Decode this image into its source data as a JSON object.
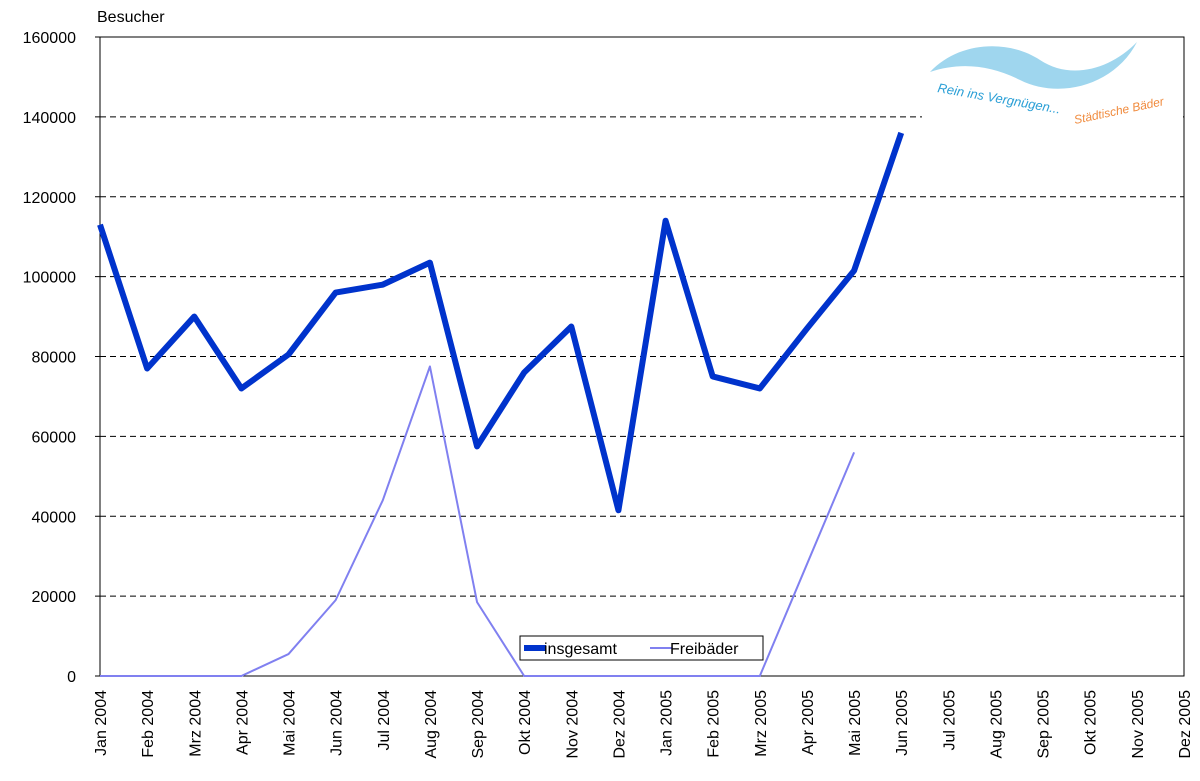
{
  "chart_data": {
    "type": "line",
    "y_axis_label": "Besucher",
    "annotations": [
      "Rein ins Vergnügen...",
      "Städtische Bäder"
    ],
    "categories": [
      "Jan 2004",
      "Feb 2004",
      "Mrz 2004",
      "Apr 2004",
      "Mai 2004",
      "Jun 2004",
      "Jul 2004",
      "Aug 2004",
      "Sep 2004",
      "Okt 2004",
      "Nov 2004",
      "Dez 2004",
      "Jan 2005",
      "Feb 2005",
      "Mrz 2005",
      "Apr 2005",
      "Mai 2005",
      "Jun 2005",
      "Jul 2005",
      "Aug 2005",
      "Sep 2005",
      "Okt 2005",
      "Nov 2005",
      "Dez 2005"
    ],
    "series": [
      {
        "name": "insgesamt",
        "color": "#0033cc",
        "values": [
          113000,
          77000,
          90000,
          72000,
          80500,
          96000,
          98000,
          103500,
          57500,
          76000,
          87500,
          41500,
          114000,
          75000,
          72000,
          87000,
          101500,
          136000,
          null,
          null,
          null,
          null,
          null,
          null
        ]
      },
      {
        "name": "Freibäder",
        "color": "#8080f0",
        "values": [
          0,
          0,
          0,
          0,
          5500,
          19000,
          44000,
          77500,
          18500,
          0,
          0,
          0,
          0,
          0,
          0,
          28000,
          56000,
          null,
          null,
          null,
          null,
          null,
          null,
          null
        ]
      }
    ],
    "ylim": [
      0,
      160000
    ],
    "yticks": [
      0,
      20000,
      40000,
      60000,
      80000,
      100000,
      120000,
      140000,
      160000
    ],
    "grid": true,
    "legend": "bottom"
  }
}
